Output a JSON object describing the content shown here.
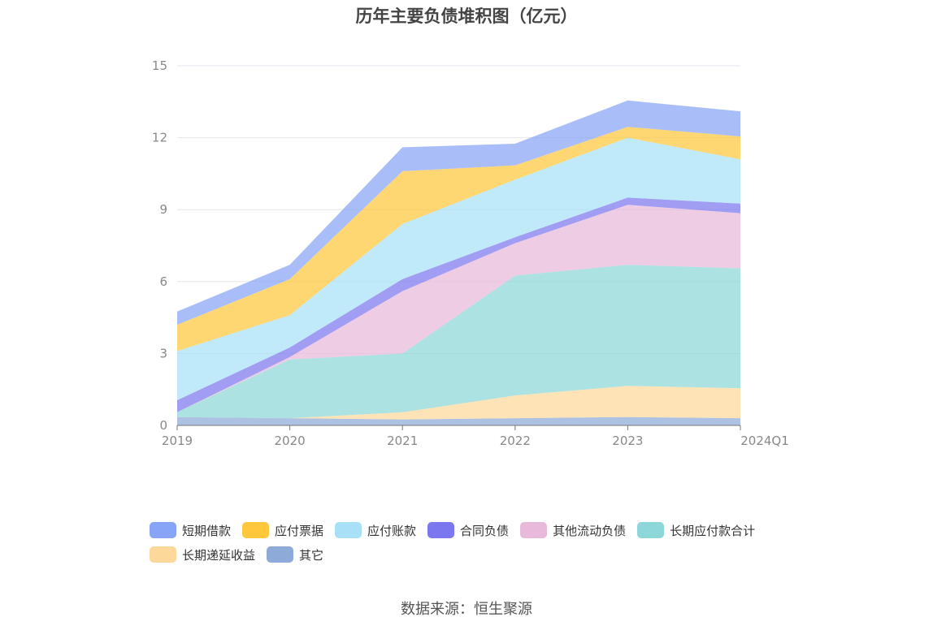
{
  "title": "历年主要负债堆积图（亿元）",
  "source": "数据来源：恒生聚源",
  "chart_data": {
    "type": "area",
    "stacked": true,
    "categories": [
      "2019",
      "2020",
      "2021",
      "2022",
      "2023",
      "2024Q1"
    ],
    "ylim": [
      0,
      15
    ],
    "yticks": [
      0,
      3,
      6,
      9,
      12,
      15
    ],
    "grid": true,
    "legend_position": "bottom",
    "series": [
      {
        "name": "其它",
        "color": "#8eaad8",
        "values": [
          0.35,
          0.3,
          0.25,
          0.3,
          0.35,
          0.3
        ]
      },
      {
        "name": "长期递延收益",
        "color": "#fcd89a",
        "values": [
          0.0,
          0.0,
          0.3,
          0.95,
          1.3,
          1.25
        ]
      },
      {
        "name": "长期应付款合计",
        "color": "#8dd7d8",
        "values": [
          0.2,
          2.45,
          2.45,
          5.0,
          5.05,
          5.0
        ]
      },
      {
        "name": "其他流动负债",
        "color": "#e8b9da",
        "values": [
          0.0,
          0.1,
          2.6,
          1.35,
          2.5,
          2.3
        ]
      },
      {
        "name": "合同负债",
        "color": "#7b77ee",
        "values": [
          0.5,
          0.4,
          0.5,
          0.25,
          0.3,
          0.4
        ]
      },
      {
        "name": "应付账款",
        "color": "#a8e0f7",
        "values": [
          2.05,
          1.35,
          2.3,
          2.4,
          2.5,
          1.85
        ]
      },
      {
        "name": "应付票据",
        "color": "#ffc73c",
        "values": [
          1.1,
          1.5,
          2.2,
          0.6,
          0.45,
          0.95
        ]
      },
      {
        "name": "短期借款",
        "color": "#88a4f7",
        "values": [
          0.55,
          0.6,
          1.0,
          0.9,
          1.1,
          1.05
        ]
      }
    ]
  }
}
